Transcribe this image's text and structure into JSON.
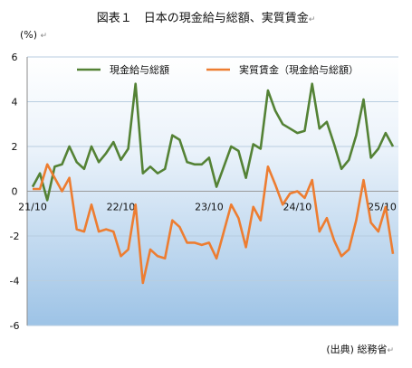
{
  "header": {
    "title": "図表１　日本の現金給与総額、実質賃金",
    "unit": "(%)",
    "source": "(出典) 総務省"
  },
  "chart_data": {
    "type": "line",
    "ylim": [
      -6,
      6
    ],
    "yticks": [
      6,
      4,
      2,
      0,
      -2,
      -4,
      -6
    ],
    "x_tick_labels": [
      {
        "index": 0,
        "label": "21/10"
      },
      {
        "index": 12,
        "label": "22/10"
      },
      {
        "index": 24,
        "label": "23/10"
      },
      {
        "index": 36,
        "label": "24/10"
      },
      {
        "index": 48,
        "label": "25/10"
      }
    ],
    "grid": "horizontal",
    "legend_position": "top",
    "colors": {
      "series1": "#548235",
      "series2": "#ed7d31",
      "bg_top": "#ffffff",
      "bg_bottom": "#9dc3e6"
    },
    "series": [
      {
        "name": "現金給与総額",
        "values": [
          0.2,
          0.8,
          -0.4,
          1.1,
          1.2,
          2.0,
          1.3,
          1.0,
          2.0,
          1.3,
          1.7,
          2.2,
          1.4,
          1.9,
          4.8,
          0.8,
          1.1,
          0.8,
          1.0,
          2.5,
          2.3,
          1.3,
          1.2,
          1.2,
          1.5,
          0.2,
          1.1,
          2.0,
          1.8,
          0.6,
          2.1,
          1.9,
          4.5,
          3.6,
          3.0,
          2.8,
          2.6,
          2.7,
          4.8,
          2.8,
          3.1,
          2.1,
          1.0,
          1.4,
          2.5,
          4.1,
          1.5,
          1.9,
          2.6,
          2.0
        ]
      },
      {
        "name": "実質賃金（現金給与総額）",
        "values": [
          0.1,
          0.1,
          1.2,
          0.6,
          0.0,
          0.6,
          -1.7,
          -1.8,
          -0.6,
          -1.8,
          -1.7,
          -1.8,
          -2.9,
          -2.6,
          -0.6,
          -4.1,
          -2.6,
          -2.9,
          -3.0,
          -1.3,
          -1.6,
          -2.3,
          -2.3,
          -2.4,
          -2.3,
          -3.0,
          -1.8,
          -0.6,
          -1.2,
          -2.5,
          -0.7,
          -1.3,
          1.1,
          0.3,
          -0.6,
          -0.1,
          0.0,
          -0.3,
          0.5,
          -1.8,
          -1.2,
          -2.2,
          -2.9,
          -2.6,
          -1.3,
          0.5,
          -1.4,
          -1.8,
          -0.7,
          -2.8
        ]
      }
    ]
  }
}
